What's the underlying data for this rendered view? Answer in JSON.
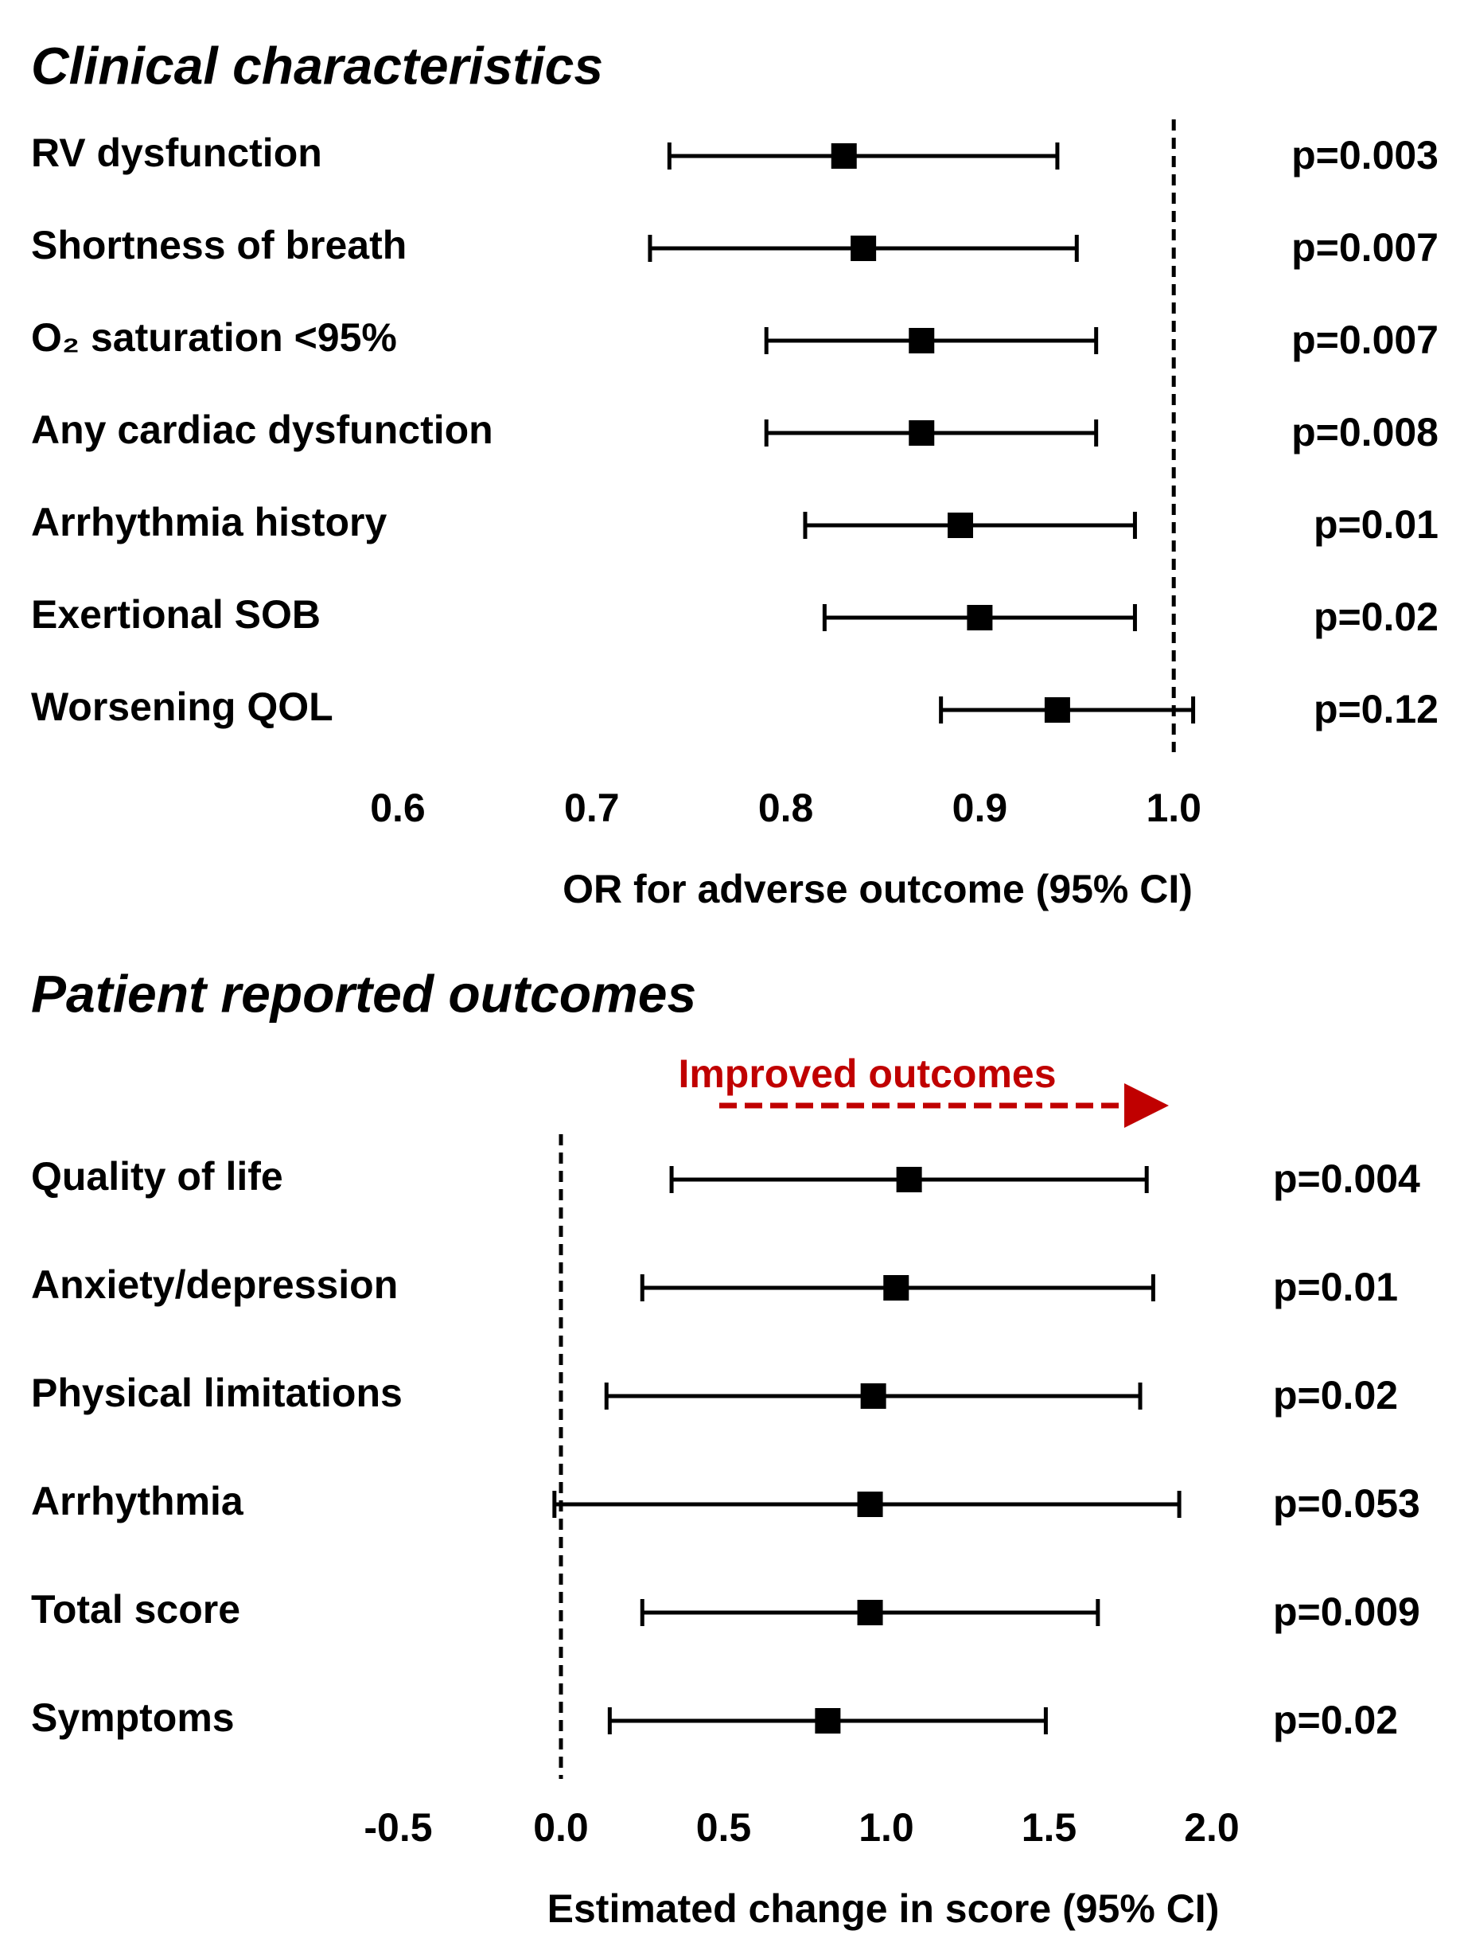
{
  "chart_data": [
    {
      "type": "forest",
      "title": "Clinical characteristics",
      "x_label": "OR for adverse outcome (95% CI)",
      "categories": [
        "RV dysfunction",
        "Shortness of breath",
        "O₂ saturation <95%",
        "Any cardiac dysfunction",
        "Arrhythmia history",
        "Exertional SOB",
        "Worsening QOL"
      ],
      "values": [
        0.83,
        0.84,
        0.87,
        0.87,
        0.89,
        0.9,
        0.94
      ],
      "ci_low": [
        0.74,
        0.73,
        0.79,
        0.79,
        0.81,
        0.82,
        0.88
      ],
      "ci_high": [
        0.94,
        0.95,
        0.96,
        0.96,
        0.98,
        0.98,
        1.01
      ],
      "p_values": [
        "p=0.003",
        "p=0.007",
        "p=0.007",
        "p=0.008",
        "p=0.01",
        "p=0.02",
        "p=0.12"
      ],
      "reference_line": 1,
      "xlim": [
        0.5,
        1.05
      ],
      "xticks": [
        0.6,
        0.7,
        0.8,
        0.9,
        {
          "value": 1,
          "label": "1.0"
        }
      ],
      "color": "#000000"
    },
    {
      "type": "forest",
      "title": "Patient reported outcomes",
      "x_label": "Estimated change in score (95% CI)",
      "annotation": "Improved outcomes",
      "annotation_color": "#c00000",
      "categories": [
        "Quality of life",
        "Anxiety/depression",
        "Physical limitations",
        "Arrhythmia",
        "Total score",
        "Symptoms"
      ],
      "values": [
        1.07,
        1.03,
        0.96,
        0.95,
        0.95,
        0.82
      ],
      "ci_low": [
        0.34,
        0.25,
        0.14,
        -0.02,
        0.25,
        0.15
      ],
      "ci_high": [
        1.8,
        1.82,
        1.78,
        1.9,
        1.65,
        1.49
      ],
      "p_values": [
        "p=0.004",
        "p=0.01",
        "p=0.02",
        "p=0.053",
        "p=0.009",
        "p=0.02"
      ],
      "reference_line": 0,
      "xlim": [
        -0.6,
        2.1
      ],
      "xticks": [
        -0.5,
        {
          "value": 0,
          "label": "0.0"
        },
        0.5,
        {
          "value": 1,
          "label": "1.0"
        },
        1.5,
        {
          "value": 2,
          "label": "2.0"
        }
      ],
      "color": "#000000"
    }
  ]
}
